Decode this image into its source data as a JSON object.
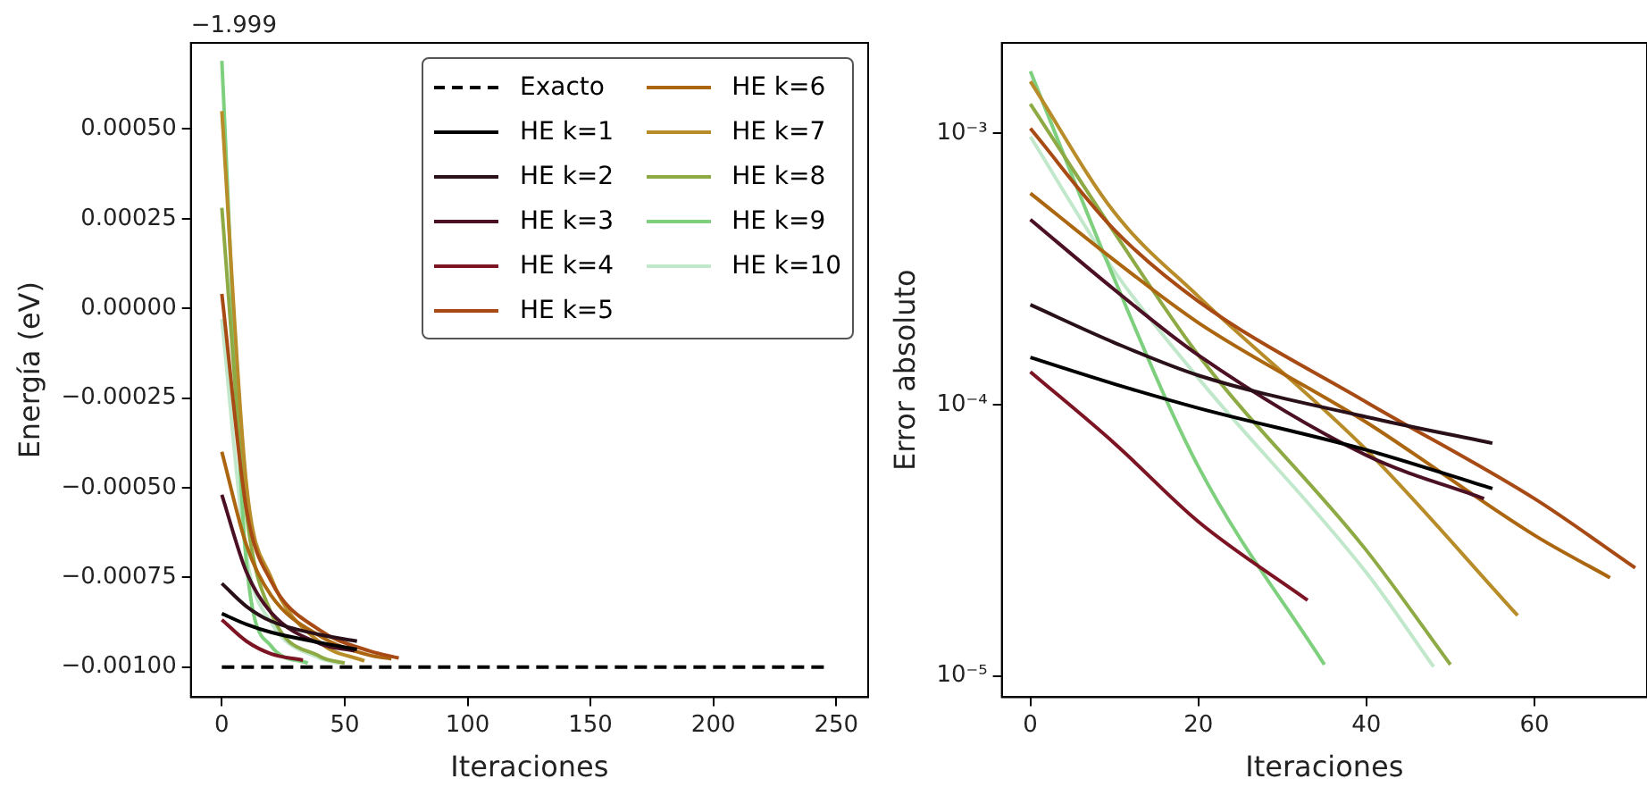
{
  "chart_data": [
    {
      "type": "line",
      "xlabel": "Iteraciones",
      "ylabel": "Energía (eV)",
      "annotations": [
        "−1.999"
      ],
      "xlim": [
        -12.6,
        263
      ],
      "xticks": [
        0,
        50,
        100,
        150,
        200,
        250
      ],
      "ylim": [
        -0.001084,
        0.00074
      ],
      "yticks": [
        {
          "value": 0.0005,
          "label": "0.00050"
        },
        {
          "value": 0.00025,
          "label": "0.00025"
        },
        {
          "value": 0,
          "label": "0.00000"
        },
        {
          "value": -0.00025,
          "label": "−0.00025"
        },
        {
          "value": -0.0005,
          "label": "−0.00050"
        },
        {
          "value": -0.00075,
          "label": "−0.00075"
        },
        {
          "value": -0.001,
          "label": "−0.00100"
        }
      ],
      "grid": false,
      "legend": "top right",
      "marker": "none",
      "series": [
        {
          "name": "Exacto",
          "color": "#000000",
          "line_style": "dashed",
          "x": [
            0,
            245
          ],
          "values": [
            -0.001,
            -0.001
          ]
        },
        {
          "name": "HE k=1",
          "color": "#000000",
          "x": [
            0,
            10,
            20,
            40,
            55
          ],
          "values": [
            -0.000851,
            -0.000881,
            -0.000903,
            -0.000932,
            -0.000951
          ]
        },
        {
          "name": "HE k=2",
          "color": "#2a1018",
          "x": [
            0,
            10,
            20,
            40,
            55
          ],
          "values": [
            -0.000767,
            -0.000831,
            -0.000872,
            -0.00091,
            -0.000928
          ]
        },
        {
          "name": "HE k=3",
          "color": "#4c1024",
          "x": [
            0,
            10,
            20,
            40,
            54
          ],
          "values": [
            -0.00052,
            -0.000735,
            -0.000848,
            -0.000935,
            -0.000955
          ]
        },
        {
          "name": "HE k=4",
          "color": "#7c1424",
          "x": [
            0,
            10,
            20,
            33
          ],
          "values": [
            -0.000868,
            -0.000928,
            -0.000963,
            -0.000981
          ]
        },
        {
          "name": "HE k=5",
          "color": "#a84a14",
          "x": [
            0,
            10,
            20,
            40,
            60,
            72
          ],
          "values": [
            4e-05,
            -0.00056,
            -0.00076,
            -0.000898,
            -0.000955,
            -0.000975
          ]
        },
        {
          "name": "HE k=6",
          "color": "#ac6610",
          "x": [
            0,
            10,
            20,
            40,
            60,
            69
          ],
          "values": [
            -0.0004,
            -0.00066,
            -0.0008,
            -0.000914,
            -0.000967,
            -0.000977
          ]
        },
        {
          "name": "HE k=7",
          "color": "#b88c28",
          "x": [
            0,
            10,
            20,
            40,
            58
          ],
          "values": [
            0.00055,
            -0.00049,
            -0.00075,
            -0.000932,
            -0.000983
          ]
        },
        {
          "name": "HE k=8",
          "color": "#8eaa44",
          "x": [
            0,
            10,
            20,
            40,
            50
          ],
          "values": [
            0.00028,
            -0.00057,
            -0.000848,
            -0.000971,
            -0.000989
          ]
        },
        {
          "name": "HE k=9",
          "color": "#7ed07e",
          "x": [
            0,
            10,
            20,
            35
          ],
          "values": [
            0.00069,
            -0.00071,
            -0.000941,
            -0.000989
          ]
        },
        {
          "name": "HE k=10",
          "color": "#c2e8cc",
          "x": [
            0,
            10,
            20,
            40,
            48
          ],
          "values": [
            -3e-05,
            -0.00069,
            -0.000875,
            -0.000976,
            -0.000989
          ]
        }
      ]
    },
    {
      "type": "line",
      "xlabel": "Iteraciones",
      "ylabel": "Error absoluto",
      "log": "y",
      "xlim": [
        -3.4,
        73.4
      ],
      "xticks": [
        0,
        20,
        40,
        60
      ],
      "ylim": [
        8.35e-06,
        0.00215
      ],
      "yticks": [
        {
          "value": 0.001,
          "label": "10⁻³"
        },
        {
          "value": 0.0001,
          "label": "10⁻⁴"
        },
        {
          "value": 1e-05,
          "label": "10⁻⁵"
        }
      ],
      "grid": false,
      "marker": "none",
      "series": [
        {
          "color": "#000000",
          "x": [
            0,
            10,
            20,
            40,
            55
          ],
          "values": [
            0.000149,
            0.000119,
            9.7e-05,
            6.8e-05,
            4.9e-05
          ]
        },
        {
          "color": "#2a1018",
          "x": [
            0,
            10,
            20,
            40,
            55
          ],
          "values": [
            0.000233,
            0.000169,
            0.000128,
            9e-05,
            7.2e-05
          ]
        },
        {
          "color": "#4c1024",
          "x": [
            0,
            10,
            20,
            40,
            54
          ],
          "values": [
            0.00048,
            0.000265,
            0.000152,
            6.5e-05,
            4.5e-05
          ]
        },
        {
          "color": "#7c1424",
          "x": [
            0,
            10,
            20,
            33
          ],
          "values": [
            0.000132,
            7.2e-05,
            3.7e-05,
            1.9e-05
          ]
        },
        {
          "color": "#a84a14",
          "x": [
            0,
            10,
            20,
            40,
            60,
            72
          ],
          "values": [
            0.00104,
            0.00044,
            0.00024,
            0.000102,
            4.5e-05,
            2.5e-05
          ]
        },
        {
          "color": "#ac6610",
          "x": [
            0,
            10,
            20,
            40,
            60,
            69
          ],
          "values": [
            0.0006,
            0.00034,
            0.0002,
            8.6e-05,
            3.3e-05,
            2.3e-05
          ]
        },
        {
          "color": "#b88c28",
          "x": [
            0,
            10,
            20,
            40,
            58
          ],
          "values": [
            0.00155,
            0.00051,
            0.00025,
            6.8e-05,
            1.67e-05
          ]
        },
        {
          "color": "#8eaa44",
          "x": [
            0,
            10,
            20,
            40,
            50
          ],
          "values": [
            0.00128,
            0.00043,
            0.000152,
            2.9e-05,
            1.1e-05
          ]
        },
        {
          "color": "#7ed07e",
          "x": [
            0,
            10,
            20,
            35
          ],
          "values": [
            0.00169,
            0.00029,
            5.9e-05,
            1.1e-05
          ]
        },
        {
          "color": "#c2e8cc",
          "x": [
            0,
            10,
            20,
            40,
            48
          ],
          "values": [
            0.00097,
            0.00031,
            0.000125,
            2.4e-05,
            1.08e-05
          ]
        }
      ]
    }
  ]
}
